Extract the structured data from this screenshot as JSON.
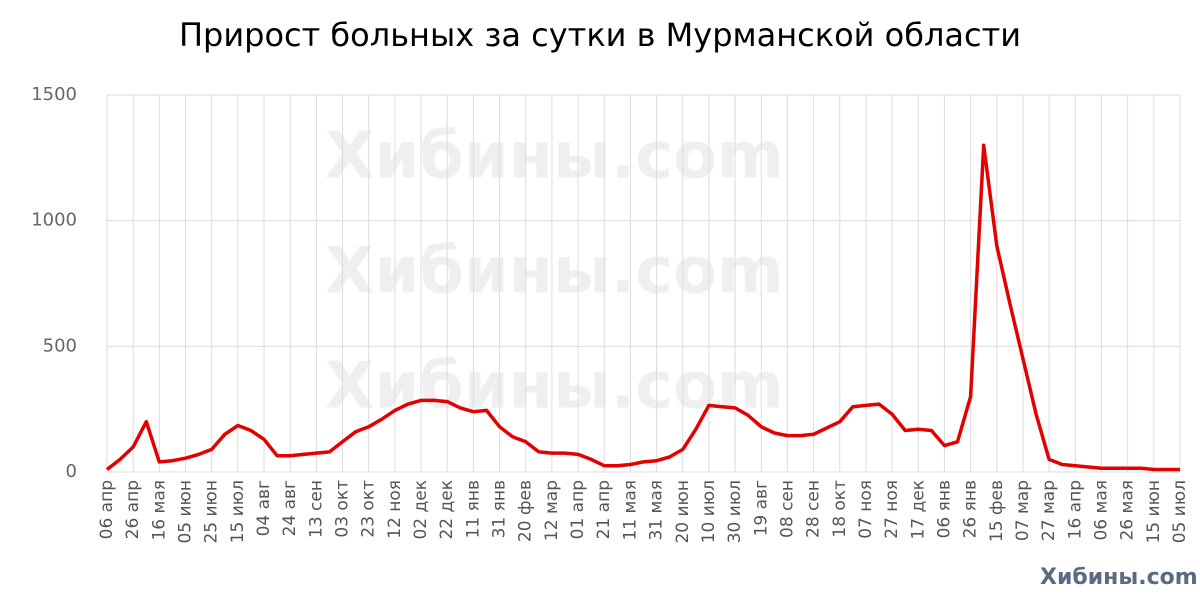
{
  "chart_data": {
    "type": "line",
    "title": "Прирост больных за сутки в Мурманской области",
    "watermark": "Хибины.com",
    "categories": [
      "06 апр",
      null,
      "26 апр",
      null,
      "16 мая",
      null,
      "05 июн",
      null,
      "25 июн",
      null,
      "15 июл",
      null,
      "04 авг",
      null,
      "24 авг",
      null,
      "13 сен",
      null,
      "03 окт",
      null,
      "23 окт",
      null,
      "12 ноя",
      null,
      "02 дек",
      null,
      "22 дек",
      null,
      "11 янв",
      null,
      "31 янв",
      null,
      "20 фев",
      null,
      "12 мар",
      null,
      "01 апр",
      null,
      "21 апр",
      null,
      "11 мая",
      null,
      "31 мая",
      null,
      "20 июн",
      null,
      "10 июл",
      null,
      "30 июл",
      null,
      "19 авг",
      null,
      "08 сен",
      null,
      "28 сен",
      null,
      "18 окт",
      null,
      "07 ноя",
      null,
      "27 ноя",
      null,
      "17 дек",
      null,
      "06 янв",
      null,
      "26 янв",
      null,
      "15 фев",
      null,
      "07 мар",
      null,
      "27 мар",
      null,
      "16 апр",
      null,
      "06 мая",
      null,
      "26 мая",
      null,
      "15 июн",
      null,
      "05 июл"
    ],
    "series": [
      {
        "color": "#e30000",
        "values": [
          10,
          50,
          100,
          200,
          40,
          45,
          55,
          70,
          90,
          150,
          185,
          165,
          130,
          65,
          65,
          70,
          75,
          80,
          120,
          160,
          180,
          210,
          245,
          270,
          285,
          285,
          280,
          255,
          240,
          245,
          180,
          140,
          120,
          80,
          75,
          75,
          70,
          50,
          25,
          25,
          30,
          40,
          45,
          60,
          90,
          170,
          265,
          260,
          255,
          225,
          180,
          155,
          145,
          145,
          150,
          175,
          200,
          260,
          265,
          270,
          230,
          165,
          170,
          165,
          105,
          120,
          300,
          1300,
          900,
          670,
          450,
          230,
          50,
          30,
          25,
          20,
          15,
          15,
          15,
          15,
          10,
          10,
          10
        ]
      }
    ],
    "ylim": [
      0,
      1500
    ],
    "yticks": [
      0,
      500,
      1000,
      1500
    ],
    "grid": true
  }
}
